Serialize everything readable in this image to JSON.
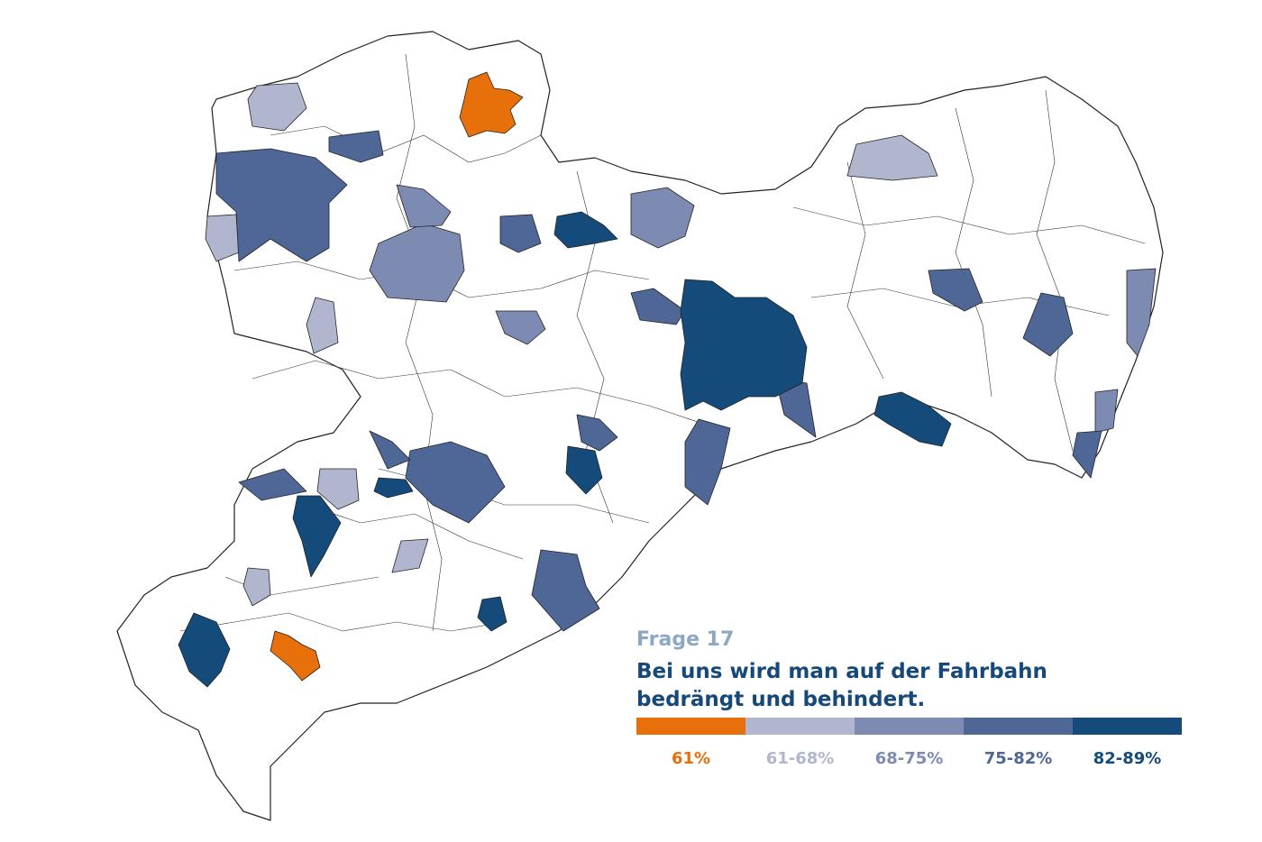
{
  "question": "Frage 17",
  "statement_lines": [
    "Bei uns wird man auf der Fahrbahn",
    "bedrängt und behindert."
  ],
  "legend": [
    {
      "label": "61%",
      "color": "#e8700a"
    },
    {
      "label": "61-68%",
      "color": "#b1b6cf"
    },
    {
      "label": "68-75%",
      "color": "#7d8bb3"
    },
    {
      "label": "75-82%",
      "color": "#4f6797"
    },
    {
      "label": "82-89%",
      "color": "#154b7a"
    }
  ]
}
